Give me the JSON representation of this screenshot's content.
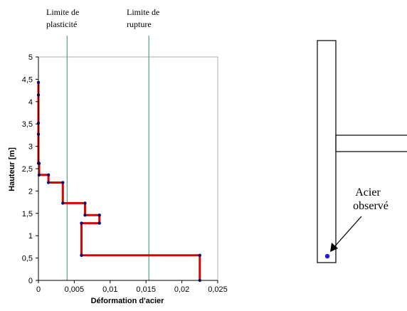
{
  "chart_data": {
    "type": "line",
    "xlabel": "Déformation d'acier",
    "ylabel": "Hauteur [m]",
    "xlim": [
      0,
      0.025
    ],
    "ylim": [
      0,
      5
    ],
    "x_ticks": [
      "0",
      "0,005",
      "0,01",
      "0,015",
      "0,02",
      "0,025"
    ],
    "y_ticks": [
      "0",
      "0,5",
      "1",
      "1,5",
      "2",
      "2,5",
      "3",
      "3,5",
      "4",
      "4,5",
      "5"
    ],
    "grid": false,
    "series": [
      {
        "color": "#e00000",
        "marker_color": "#0a0a6e",
        "points": [
          [
            0.0225,
            0.0
          ],
          [
            0.0225,
            0.56
          ],
          [
            0.006,
            0.56
          ],
          [
            0.006,
            1.28
          ],
          [
            0.0085,
            1.28
          ],
          [
            0.0085,
            1.46
          ],
          [
            0.0065,
            1.46
          ],
          [
            0.0065,
            1.73
          ],
          [
            0.0034,
            1.73
          ],
          [
            0.0034,
            2.19
          ],
          [
            0.0014,
            2.19
          ],
          [
            0.0014,
            2.36
          ],
          [
            0.0001,
            2.36
          ],
          [
            0.0001,
            2.62
          ],
          [
            0.0,
            2.62
          ],
          [
            0.0,
            3.27
          ],
          [
            0.0,
            3.52
          ],
          [
            0.0,
            4.15
          ],
          [
            0.0,
            4.43
          ]
        ]
      }
    ],
    "reference_lines": [
      {
        "x": 0.004,
        "label_line1": "Limite de",
        "label_line2": "plasticité",
        "color": "#5fa88a"
      },
      {
        "x": 0.0154,
        "label_line1": "Limite de",
        "label_line2": "rupture",
        "color": "#5fa88a"
      }
    ]
  },
  "diagram": {
    "annotation_line1": "Acier",
    "annotation_line2": "observé",
    "point_color": "#1a1aee"
  }
}
